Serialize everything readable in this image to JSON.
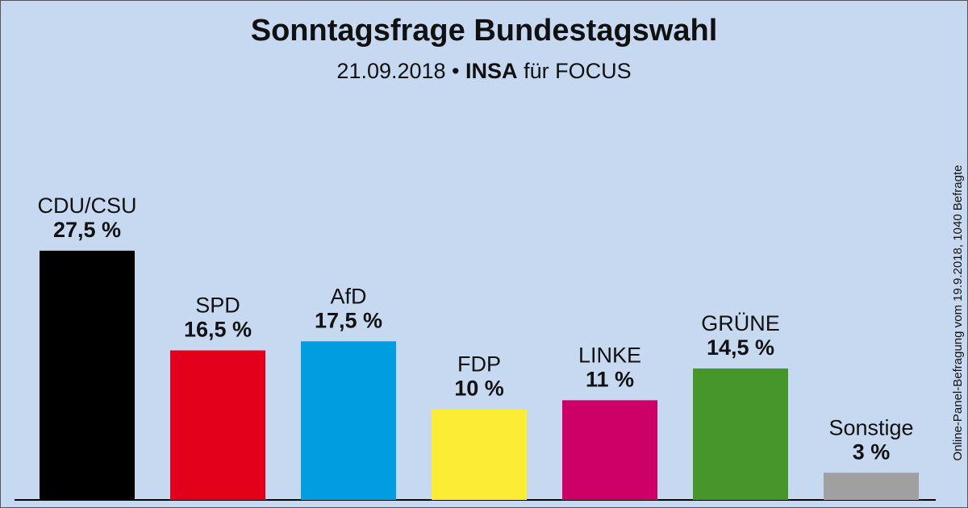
{
  "chart_data": {
    "type": "bar",
    "title": "Sonntagsfrage Bundestagswahl",
    "subtitle": [
      "21.09.2018 •",
      "INSA",
      "für FOCUS"
    ],
    "note": "Online-Panel-Befragung vom 19.9.2018, 1040 Befragte",
    "categories": [
      "CDU/CSU",
      "SPD",
      "AfD",
      "FDP",
      "LINKE",
      "GRÜNE",
      "Sonstige"
    ],
    "values": [
      27.5,
      16.5,
      17.5,
      10,
      11,
      14.5,
      3
    ],
    "value_labels": [
      "27,5 %",
      "16,5 %",
      "17,5 %",
      "10 %",
      "11 %",
      "14,5 %",
      "3 %"
    ],
    "colors": [
      "#000000",
      "#e2001a",
      "#009ee0",
      "#fcec33",
      "#cc0066",
      "#46962b",
      "#a0a0a0"
    ]
  }
}
